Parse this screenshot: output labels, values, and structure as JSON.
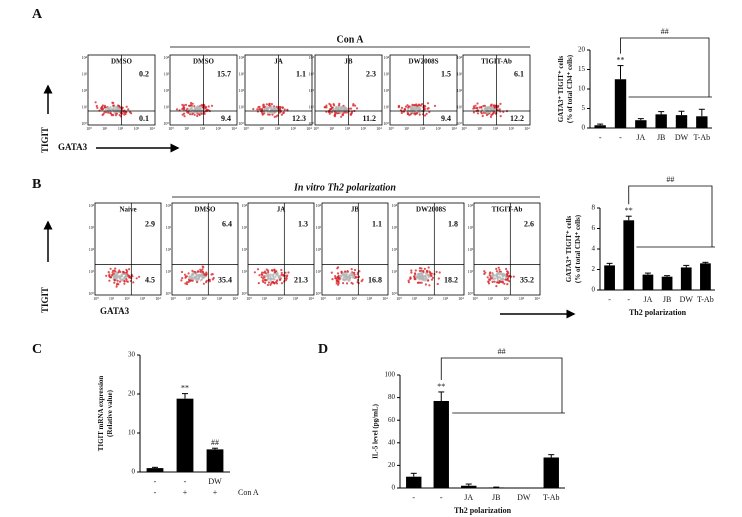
{
  "panels": [
    "A",
    "B",
    "C",
    "D"
  ],
  "flow": [
    {
      "header": "Con A",
      "y_label": "TIGIT",
      "x_label": "GATA3",
      "plots": [
        {
          "title": "DMSO",
          "upper_right": 0.2,
          "lower_right": 0.1
        },
        {
          "title": "DMSO",
          "upper_right": 15.7,
          "lower_right": 9.4
        },
        {
          "title": "JA",
          "upper_right": 1.1,
          "lower_right": 12.3
        },
        {
          "title": "JB",
          "upper_right": 2.3,
          "lower_right": 11.2
        },
        {
          "title": "DW2008S",
          "upper_right": 1.5,
          "lower_right": 9.4
        },
        {
          "title": "TIGIT-Ab",
          "upper_right": 6.1,
          "lower_right": 12.2
        }
      ]
    },
    {
      "header": "In vitro Th2 polarization",
      "y_label": "TIGIT",
      "x_label": "GATA3",
      "plots": [
        {
          "title": "Naive",
          "upper_right": 2.9,
          "lower_right": 4.5
        },
        {
          "title": "DMSO",
          "upper_right": 6.4,
          "lower_right": 35.4
        },
        {
          "title": "JA",
          "upper_right": 1.3,
          "lower_right": 21.3
        },
        {
          "title": "JB",
          "upper_right": 1.1,
          "lower_right": 16.8
        },
        {
          "title": "DW2008S",
          "upper_right": 1.8,
          "lower_right": 18.2
        },
        {
          "title": "TIGIT-Ab",
          "upper_right": 2.6,
          "lower_right": 35.2
        }
      ]
    }
  ],
  "flow_axis_ticks": [
    "10⁰",
    "10¹",
    "10²",
    "10³",
    "10⁴"
  ],
  "chart_data": [
    {
      "type": "bar",
      "ylabel": [
        "GATA3⁺ TIGIT⁺ cells",
        "(% of total CD4⁺ cells)"
      ],
      "categories": [
        "-",
        "-",
        "JA",
        "JB",
        "DW",
        "T-Ab"
      ],
      "values": [
        0.7,
        12.5,
        2,
        3.5,
        3.3,
        3
      ],
      "errors": [
        0.3,
        3.5,
        0.4,
        0.7,
        1,
        1.8
      ],
      "marks": [
        null,
        "**",
        null,
        null,
        null,
        null
      ],
      "comparison_label": "##",
      "color": "#000000",
      "ylim": [
        0,
        20
      ],
      "yticks": [
        0,
        5,
        10,
        15,
        20
      ]
    },
    {
      "type": "bar",
      "ylabel": [
        "GATA3⁺ TIGIT⁺ cells",
        "(% of total CD4⁺ cells)"
      ],
      "categories": [
        "-",
        "-",
        "JA",
        "JB",
        "DW",
        "T-Ab"
      ],
      "xlabel": "Th2 polarization",
      "values": [
        2.4,
        6.8,
        1.5,
        1.3,
        2.2,
        2.6
      ],
      "errors": [
        0.2,
        0.4,
        0.15,
        0.1,
        0.2,
        0.1
      ],
      "marks": [
        null,
        "**",
        null,
        null,
        null,
        null
      ],
      "comparison_label": "##",
      "color": "#000000",
      "ylim": [
        0,
        8
      ],
      "yticks": [
        0,
        2,
        4,
        6,
        8
      ]
    },
    {
      "type": "bar",
      "ylabel": [
        "TIGIT mRNA expression",
        "(Relative value)"
      ],
      "categories": [
        "-",
        "-",
        "DW"
      ],
      "treatment": [
        "-",
        "+",
        "+"
      ],
      "treatment_label": "Con A",
      "values": [
        1,
        18.8,
        5.8
      ],
      "errors": [
        0.2,
        1.3,
        0.3
      ],
      "marks": [
        null,
        "**",
        "##"
      ],
      "color": "#000000",
      "ylim": [
        0,
        30
      ],
      "yticks": [
        0,
        10,
        20,
        30
      ]
    },
    {
      "type": "bar",
      "ylabel": [
        "IL-5 level (pg/mL)"
      ],
      "categories": [
        "-",
        "-",
        "JA",
        "JB",
        "DW",
        "T-Ab"
      ],
      "xlabel": "Th2 polarization",
      "values": [
        10,
        77,
        2,
        0.5,
        0,
        27
      ],
      "errors": [
        3,
        8,
        1.5,
        0.3,
        0,
        2.5
      ],
      "marks": [
        null,
        "**",
        null,
        null,
        null,
        null
      ],
      "comparison_label": "##",
      "color": "#000000",
      "ylim": [
        0,
        100
      ],
      "yticks": [
        0,
        20,
        40,
        60,
        80,
        100
      ]
    }
  ]
}
